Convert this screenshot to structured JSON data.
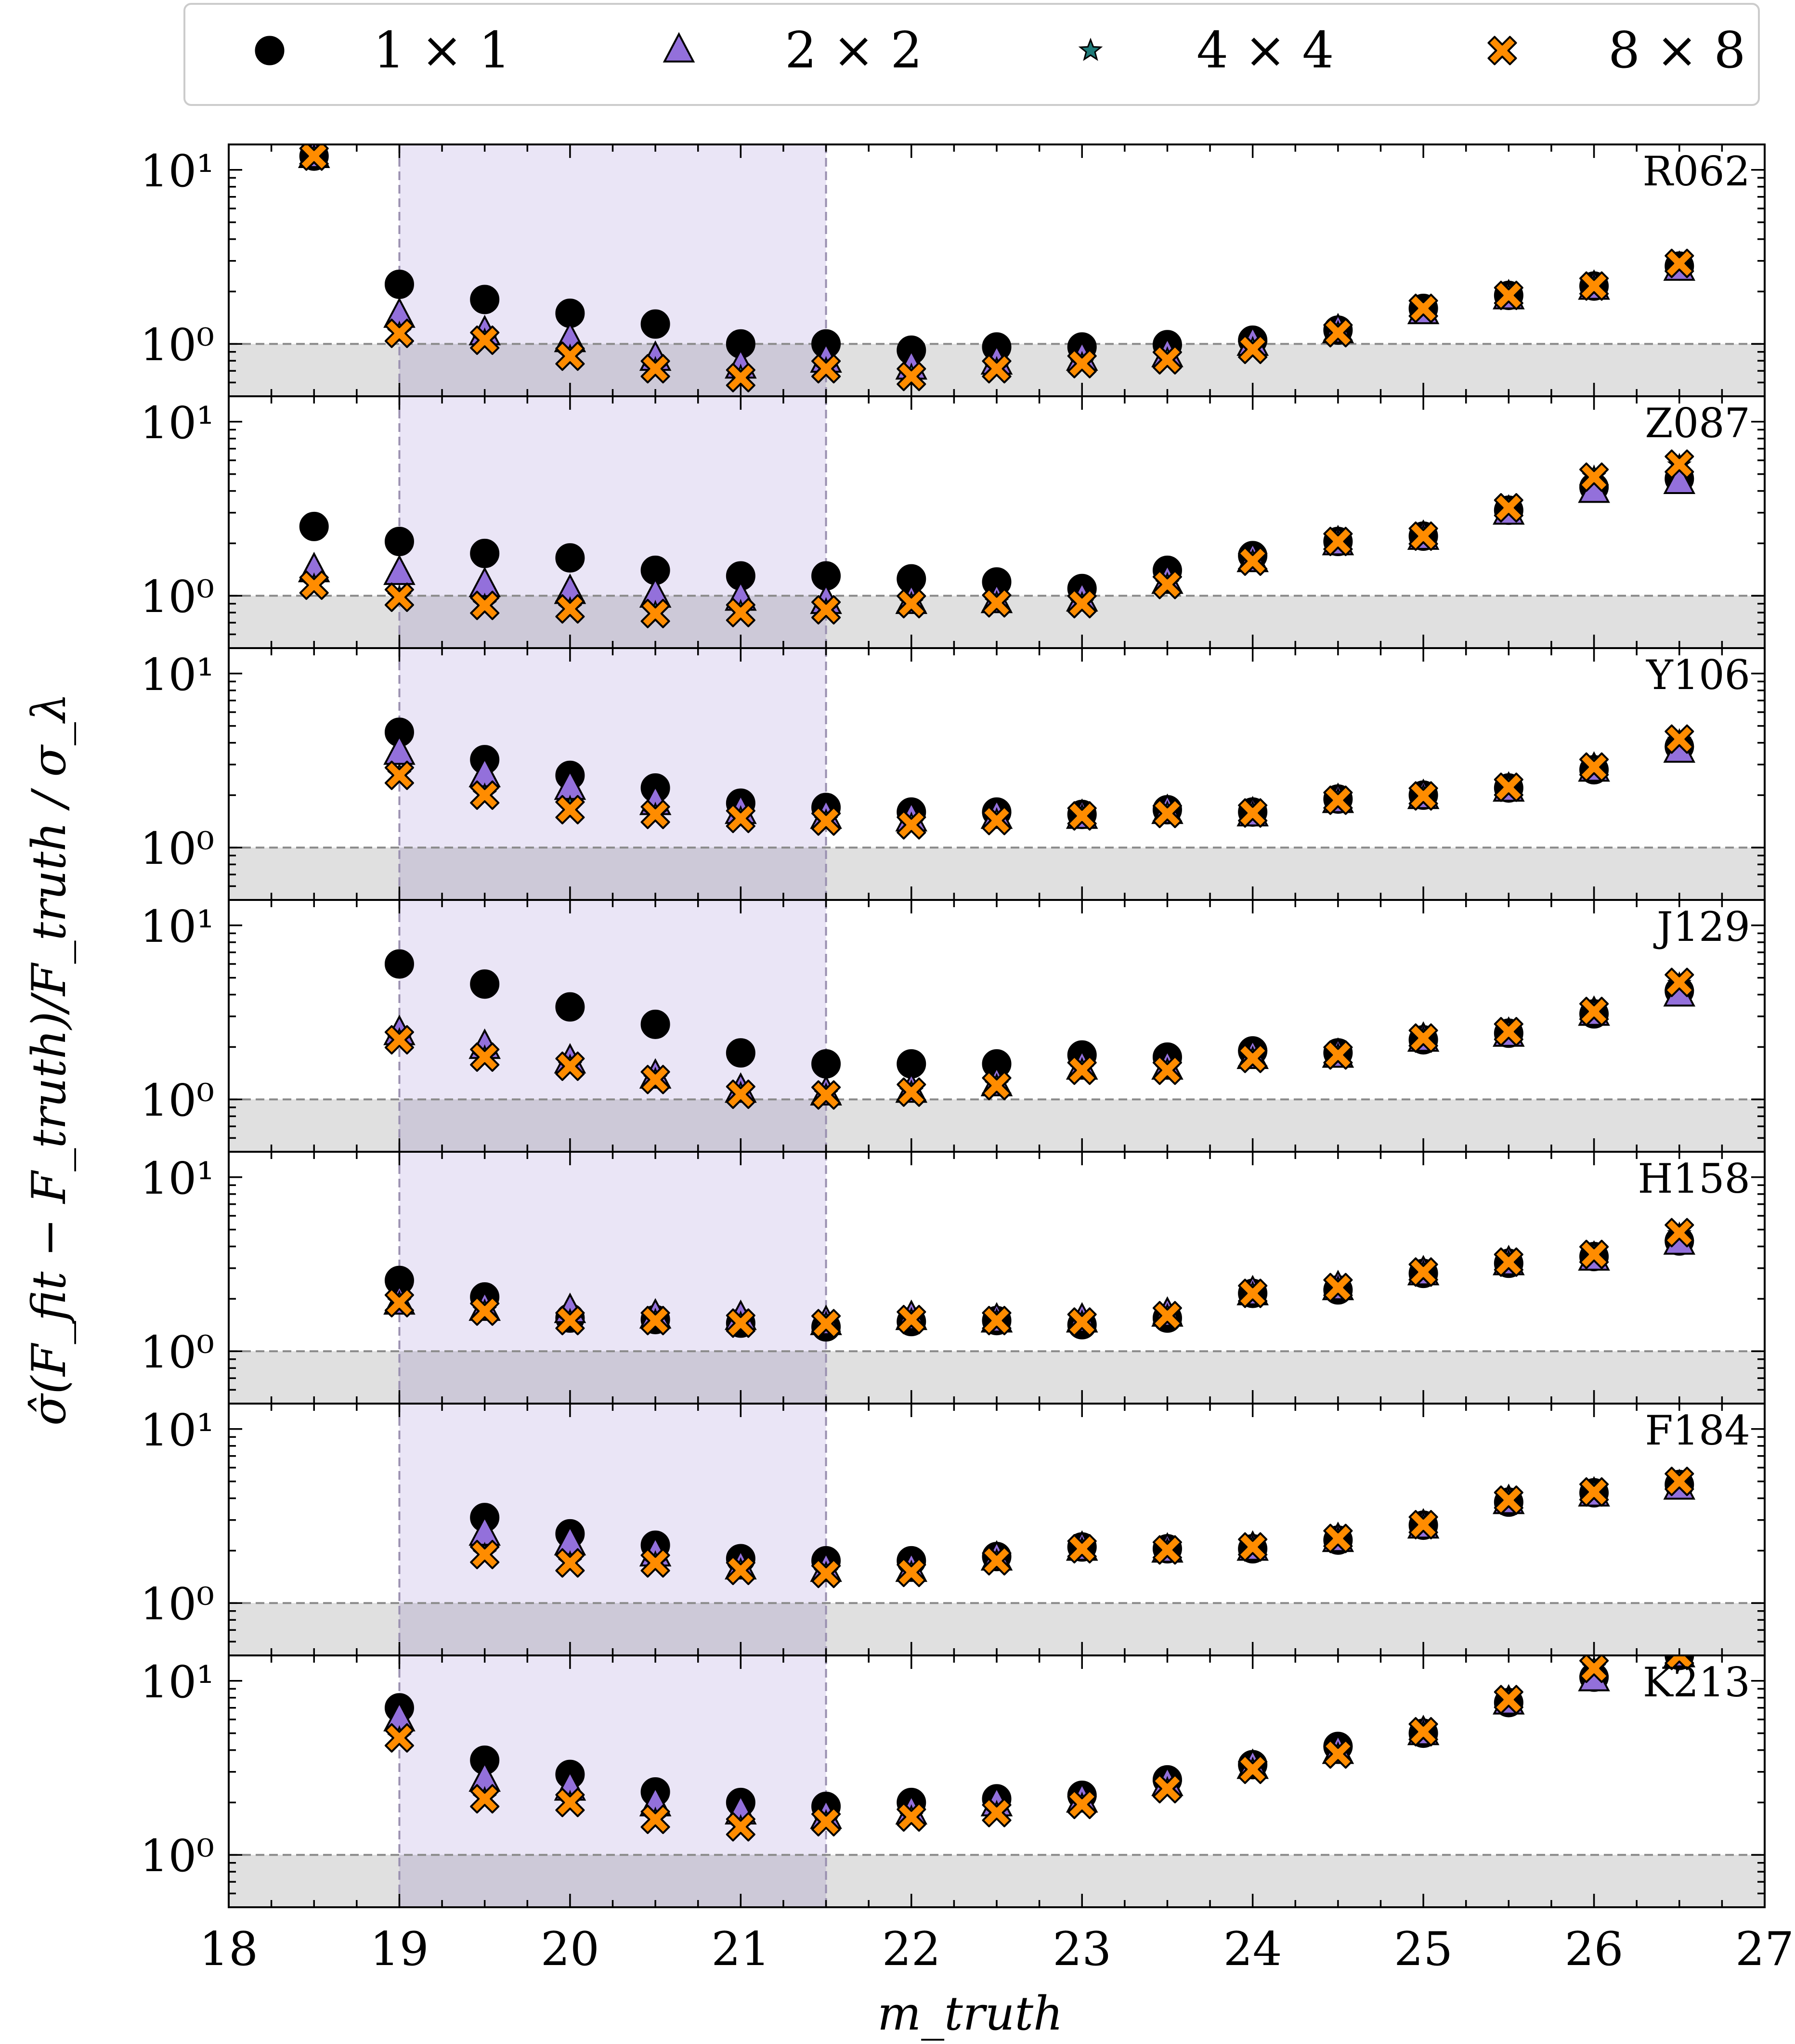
{
  "legend": {
    "items": [
      {
        "label": "1 × 1",
        "marker": "circle",
        "color": "#000000"
      },
      {
        "label": "2 × 2",
        "marker": "triangle",
        "color": "#9370db"
      },
      {
        "label": "4 × 4",
        "marker": "star",
        "color": "#1f7a78"
      },
      {
        "label": "8 × 8",
        "marker": "x",
        "color": "#ff8c00"
      }
    ]
  },
  "colors": {
    "circle": "#000000",
    "triangle": "#9370db",
    "star": "#1f7a78",
    "x": "#ff8c00",
    "span": "#e6e0f5",
    "band": "#e0e0e0"
  },
  "chart_data": {
    "type": "scatter",
    "yscale": "log",
    "ylabel": "σ̂(F_fit − F_truth)/F_truth / σ_λ",
    "xlabel": "m_truth",
    "xlim": [
      18,
      27
    ],
    "ylim": [
      0.5,
      14
    ],
    "xticks": [
      18,
      19,
      20,
      21,
      22,
      23,
      24,
      25,
      26,
      27
    ],
    "ytick_labels": [
      "10⁰",
      "10¹"
    ],
    "ytick_values": [
      1,
      10
    ],
    "highlight_span": [
      19,
      21.5
    ],
    "reference_band": [
      0.5,
      1.0
    ],
    "reference_line": 1.0,
    "series_names": [
      "1 × 1",
      "2 × 2",
      "4 × 4",
      "8 × 8"
    ],
    "panels": [
      {
        "name": "R062",
        "x": [
          18.5,
          19,
          19.5,
          20,
          20.5,
          21,
          21.5,
          22,
          22.5,
          23,
          23.5,
          24,
          24.5,
          25,
          25.5,
          26,
          26.5
        ],
        "series": [
          {
            "name": "1 × 1",
            "values": [
              12.0,
              2.2,
              1.8,
              1.5,
              1.3,
              1.0,
              1.0,
              0.92,
              0.96,
              0.96,
              0.99,
              1.05,
              1.2,
              1.6,
              1.9,
              2.15,
              2.8
            ]
          },
          {
            "name": "2 × 2",
            "values": [
              12.0,
              1.45,
              1.15,
              1.05,
              0.82,
              0.74,
              0.8,
              0.73,
              0.78,
              0.82,
              0.86,
              1.0,
              1.18,
              1.52,
              1.85,
              2.1,
              2.7
            ]
          },
          {
            "name": "4 × 4",
            "values": [
              12.0,
              1.15,
              1.05,
              0.85,
              0.72,
              0.65,
              0.72,
              0.66,
              0.72,
              0.77,
              0.82,
              0.94,
              1.16,
              1.58,
              1.9,
              2.15,
              2.85
            ]
          },
          {
            "name": "8 × 8",
            "values": [
              12.0,
              1.15,
              1.05,
              0.85,
              0.72,
              0.64,
              0.72,
              0.65,
              0.72,
              0.77,
              0.81,
              0.93,
              1.16,
              1.6,
              1.9,
              2.15,
              2.9
            ]
          }
        ]
      },
      {
        "name": "Z087",
        "x": [
          18.5,
          19,
          19.5,
          20,
          20.5,
          21,
          21.5,
          22,
          22.5,
          23,
          23.5,
          24,
          24.5,
          25,
          25.5,
          26,
          26.5
        ],
        "series": [
          {
            "name": "1 × 1",
            "values": [
              2.5,
              2.05,
              1.75,
              1.65,
              1.4,
              1.3,
              1.3,
              1.25,
              1.2,
              1.1,
              1.4,
              1.7,
              2.05,
              2.2,
              3.1,
              4.2,
              4.7
            ]
          },
          {
            "name": "2 × 2",
            "values": [
              1.4,
              1.35,
              1.15,
              1.05,
              1.0,
              0.96,
              0.92,
              0.92,
              0.93,
              0.95,
              1.2,
              1.6,
              2.0,
              2.15,
              3.0,
              4.0,
              4.5
            ]
          },
          {
            "name": "4 × 4",
            "values": [
              1.15,
              0.98,
              0.88,
              0.84,
              0.8,
              0.81,
              0.83,
              0.9,
              0.91,
              0.9,
              1.16,
              1.58,
              2.05,
              2.2,
              3.2,
              4.8,
              5.6
            ]
          },
          {
            "name": "8 × 8",
            "values": [
              1.15,
              0.98,
              0.88,
              0.84,
              0.79,
              0.8,
              0.83,
              0.9,
              0.91,
              0.9,
              1.16,
              1.58,
              2.05,
              2.2,
              3.2,
              4.8,
              5.7
            ]
          }
        ]
      },
      {
        "name": "Y106",
        "x": [
          19,
          19.5,
          20,
          20.5,
          21,
          21.5,
          22,
          22.5,
          23,
          23.5,
          24,
          24.5,
          25,
          25.5,
          26,
          26.5
        ],
        "series": [
          {
            "name": "1 × 1",
            "values": [
              4.6,
              3.2,
              2.6,
              2.2,
              1.8,
              1.7,
              1.6,
              1.6,
              1.55,
              1.65,
              1.6,
              1.9,
              2.0,
              2.2,
              2.8,
              3.8
            ]
          },
          {
            "name": "2 × 2",
            "values": [
              3.5,
              2.6,
              2.2,
              1.8,
              1.6,
              1.5,
              1.45,
              1.5,
              1.5,
              1.6,
              1.55,
              1.85,
              1.95,
              2.15,
              2.8,
              3.6
            ]
          },
          {
            "name": "4 × 4",
            "values": [
              2.6,
              2.0,
              1.7,
              1.55,
              1.48,
              1.42,
              1.36,
              1.44,
              1.52,
              1.58,
              1.58,
              1.88,
              1.98,
              2.22,
              2.9,
              4.1
            ]
          },
          {
            "name": "8 × 8",
            "values": [
              2.6,
              2.0,
              1.65,
              1.55,
              1.47,
              1.42,
              1.35,
              1.43,
              1.52,
              1.57,
              1.58,
              1.87,
              1.98,
              2.22,
              2.9,
              4.2
            ]
          }
        ]
      },
      {
        "name": "J129",
        "x": [
          19,
          19.5,
          20,
          20.5,
          21,
          21.5,
          22,
          22.5,
          23,
          23.5,
          24,
          24.5,
          25,
          25.5,
          26,
          26.5
        ],
        "series": [
          {
            "name": "1 × 1",
            "values": [
              6.0,
              4.6,
              3.4,
              2.7,
              1.85,
              1.6,
              1.6,
              1.6,
              1.8,
              1.75,
              1.9,
              1.85,
              2.2,
              2.4,
              3.1,
              4.2
            ]
          },
          {
            "name": "2 × 2",
            "values": [
              2.4,
              2.0,
              1.65,
              1.35,
              1.12,
              1.08,
              1.12,
              1.22,
              1.52,
              1.52,
              1.75,
              1.78,
              2.2,
              2.35,
              3.1,
              4.0
            ]
          },
          {
            "name": "4 × 4",
            "values": [
              2.2,
              1.75,
              1.55,
              1.3,
              1.08,
              1.06,
              1.1,
              1.2,
              1.48,
              1.48,
              1.72,
              1.8,
              2.25,
              2.45,
              3.2,
              4.6
            ]
          },
          {
            "name": "8 × 8",
            "values": [
              2.2,
              1.75,
              1.55,
              1.3,
              1.07,
              1.06,
              1.1,
              1.2,
              1.47,
              1.47,
              1.72,
              1.8,
              2.25,
              2.45,
              3.2,
              4.7
            ]
          }
        ]
      },
      {
        "name": "H158",
        "x": [
          19,
          19.5,
          20,
          20.5,
          21,
          21.5,
          22,
          22.5,
          23,
          23.5,
          24,
          24.5,
          25,
          25.5,
          26,
          26.5
        ],
        "series": [
          {
            "name": "1 × 1",
            "values": [
              2.55,
              2.05,
              1.55,
              1.52,
              1.45,
              1.38,
              1.48,
              1.5,
              1.42,
              1.55,
              2.15,
              2.25,
              2.8,
              3.2,
              3.5,
              4.3
            ]
          },
          {
            "name": "2 × 2",
            "values": [
              1.9,
              1.75,
              1.7,
              1.58,
              1.55,
              1.45,
              1.55,
              1.5,
              1.5,
              1.62,
              2.15,
              2.3,
              2.8,
              3.2,
              3.4,
              4.2
            ]
          },
          {
            "name": "4 × 4",
            "values": [
              1.9,
              1.7,
              1.5,
              1.5,
              1.45,
              1.45,
              1.52,
              1.5,
              1.47,
              1.6,
              2.15,
              2.32,
              2.85,
              3.25,
              3.6,
              4.7
            ]
          },
          {
            "name": "8 × 8",
            "values": [
              1.9,
              1.7,
              1.5,
              1.5,
              1.45,
              1.44,
              1.52,
              1.5,
              1.47,
              1.6,
              2.15,
              2.32,
              2.85,
              3.25,
              3.6,
              4.8
            ]
          }
        ]
      },
      {
        "name": "F184",
        "x": [
          19.5,
          20,
          20.5,
          21,
          21.5,
          22,
          22.5,
          23,
          23.5,
          24,
          24.5,
          25,
          25.5,
          26,
          26.5
        ],
        "series": [
          {
            "name": "1 × 1",
            "values": [
              3.1,
              2.5,
              2.15,
              1.8,
              1.75,
              1.75,
              1.85,
              2.1,
              2.05,
              2.05,
              2.3,
              2.8,
              3.8,
              4.3,
              4.8
            ]
          },
          {
            "name": "2 × 2",
            "values": [
              2.5,
              2.2,
              1.9,
              1.6,
              1.55,
              1.55,
              1.8,
              2.05,
              2.0,
              2.05,
              2.3,
              2.75,
              3.8,
              4.2,
              4.6
            ]
          },
          {
            "name": "4 × 4",
            "values": [
              1.9,
              1.7,
              1.7,
              1.55,
              1.48,
              1.5,
              1.75,
              2.05,
              2.02,
              2.1,
              2.35,
              2.82,
              3.9,
              4.35,
              5.0
            ]
          },
          {
            "name": "8 × 8",
            "values": [
              1.9,
              1.7,
              1.7,
              1.54,
              1.48,
              1.5,
              1.75,
              2.05,
              2.02,
              2.1,
              2.35,
              2.82,
              3.9,
              4.35,
              5.0
            ]
          }
        ]
      },
      {
        "name": "K213",
        "x": [
          19,
          19.5,
          20,
          20.5,
          21,
          21.5,
          22,
          22.5,
          23,
          23.5,
          24,
          24.5,
          25,
          25.5,
          26,
          26.5
        ],
        "series": [
          {
            "name": "1 × 1",
            "values": [
              7.0,
              3.5,
              2.9,
              2.3,
              2.0,
              1.9,
              2.0,
              2.1,
              2.2,
              2.7,
              3.3,
              4.2,
              5.0,
              7.5,
              10.5,
              14.0
            ]
          },
          {
            "name": "2 × 2",
            "values": [
              6.0,
              2.7,
              2.4,
              1.95,
              1.75,
              1.65,
              1.75,
              1.95,
              2.05,
              2.55,
              3.2,
              3.9,
              5.0,
              7.5,
              10.2,
              14.0
            ]
          },
          {
            "name": "4 × 4",
            "values": [
              4.7,
              2.1,
              2.0,
              1.6,
              1.45,
              1.55,
              1.65,
              1.75,
              1.95,
              2.4,
              3.1,
              3.8,
              5.1,
              7.8,
              11.8,
              14.0
            ]
          },
          {
            "name": "8 × 8",
            "values": [
              4.7,
              2.1,
              2.0,
              1.6,
              1.45,
              1.55,
              1.65,
              1.75,
              1.95,
              2.4,
              3.1,
              3.8,
              5.1,
              7.8,
              11.8,
              14.0
            ]
          }
        ]
      }
    ]
  }
}
